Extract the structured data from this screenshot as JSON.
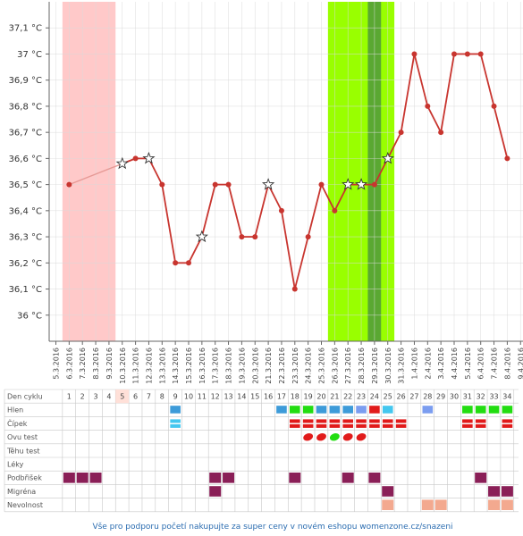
{
  "colors": {
    "line": "#c8352f",
    "period_band": "#ffc9c9",
    "fertile_band": "#99ff00",
    "ovulation_band": "#5aa832",
    "grid": "#d9d9d9",
    "highlight_day": "#ffe0d8",
    "footer_text": "#2a6cb0",
    "marker_blue": "#3d9bd9",
    "marker_lightblue": "#43c7ef",
    "marker_periwinkle": "#7b9df0",
    "marker_green": "#22dd11",
    "marker_red": "#e11b1b",
    "marker_purple": "#8a1f57",
    "marker_salmon": "#f3a98f"
  },
  "chart_data": {
    "type": "line",
    "ylim": [
      35.9,
      37.2
    ],
    "yticks": [
      "36 °C",
      "36,1 °C",
      "36,2 °C",
      "36,3 °C",
      "36,4 °C",
      "36,5 °C",
      "36,6 °C",
      "36,7 °C",
      "36,8 °C",
      "36,9 °C",
      "37 °C",
      "37,1 °C"
    ],
    "ytick_values": [
      36.0,
      36.1,
      36.2,
      36.3,
      36.4,
      36.5,
      36.6,
      36.7,
      36.8,
      36.9,
      37.0,
      37.1
    ],
    "dates": [
      "5.3.2016",
      "6.3.2016",
      "7.3.2016",
      "8.3.2016",
      "9.3.2016",
      "10.3.2016",
      "11.3.2016",
      "12.3.2016",
      "13.3.2016",
      "14.3.2016",
      "15.3.2016",
      "16.3.2016",
      "17.3.2016",
      "18.3.2016",
      "19.3.2016",
      "20.3.2016",
      "21.3.2016",
      "22.3.2016",
      "23.3.2016",
      "24.3.2016",
      "25.3.2016",
      "26.3.2016",
      "27.3.2016",
      "28.3.2016",
      "29.3.2016",
      "30.3.2016",
      "31.3.2016",
      "1.4.2016",
      "2.4.2016",
      "3.4.2016",
      "4.4.2016",
      "5.4.2016",
      "6.4.2016",
      "7.4.2016",
      "8.4.2016",
      "9.4.2016"
    ],
    "temperatures": [
      null,
      36.5,
      null,
      null,
      null,
      36.58,
      36.6,
      36.6,
      36.5,
      36.2,
      36.2,
      36.3,
      36.5,
      36.5,
      36.3,
      36.3,
      36.5,
      36.4,
      36.1,
      36.3,
      36.5,
      36.4,
      36.5,
      36.5,
      36.5,
      36.6,
      36.7,
      37.0,
      36.8,
      36.7,
      37.0,
      37.0,
      37.0,
      36.8,
      36.6,
      null
    ],
    "star_days": [
      5,
      7,
      11,
      16,
      22,
      23,
      25
    ],
    "dotted_segment": [
      1,
      5
    ],
    "period_band_days": [
      1,
      4
    ],
    "fertile_band_days": [
      21,
      25
    ],
    "ovulation_band_day": 24,
    "grid": true
  },
  "cycle_table": {
    "rows": [
      "Den cyklu",
      "Hlen",
      "Čípek",
      "Ovu test",
      "Těhu test",
      "Léky",
      "Podbřišek",
      "Migréna",
      "Nevolnost"
    ],
    "day_numbers": [
      "1",
      "2",
      "3",
      "4",
      "5",
      "6",
      "7",
      "8",
      "9",
      "10",
      "11",
      "12",
      "13",
      "14",
      "15",
      "16",
      "17",
      "18",
      "19",
      "20",
      "21",
      "22",
      "23",
      "24",
      "25",
      "26",
      "27",
      "28",
      "29",
      "30",
      "31",
      "32",
      "33",
      "34"
    ],
    "highlight_day": 5,
    "hlen": [
      {
        "day": 9,
        "color": "marker_blue"
      },
      {
        "day": 17,
        "color": "marker_blue"
      },
      {
        "day": 18,
        "color": "marker_green"
      },
      {
        "day": 19,
        "color": "marker_green"
      },
      {
        "day": 20,
        "color": "marker_blue"
      },
      {
        "day": 21,
        "color": "marker_blue"
      },
      {
        "day": 22,
        "color": "marker_blue"
      },
      {
        "day": 23,
        "color": "marker_periwinkle"
      },
      {
        "day": 24,
        "color": "marker_red"
      },
      {
        "day": 25,
        "color": "marker_lightblue"
      },
      {
        "day": 28,
        "color": "marker_periwinkle"
      },
      {
        "day": 31,
        "color": "marker_green"
      },
      {
        "day": 32,
        "color": "marker_green"
      },
      {
        "day": 33,
        "color": "marker_green"
      },
      {
        "day": 34,
        "color": "marker_green"
      }
    ],
    "cipek": [
      {
        "day": 9,
        "color": "marker_lightblue"
      },
      {
        "day": 18,
        "color": "marker_red"
      },
      {
        "day": 19,
        "color": "marker_red"
      },
      {
        "day": 20,
        "color": "marker_red"
      },
      {
        "day": 21,
        "color": "marker_red"
      },
      {
        "day": 22,
        "color": "marker_red"
      },
      {
        "day": 23,
        "color": "marker_red"
      },
      {
        "day": 24,
        "color": "marker_red"
      },
      {
        "day": 25,
        "color": "marker_red"
      },
      {
        "day": 26,
        "color": "marker_red"
      },
      {
        "day": 31,
        "color": "marker_red"
      },
      {
        "day": 32,
        "color": "marker_red"
      },
      {
        "day": 34,
        "color": "marker_red"
      }
    ],
    "ovu_test": [
      {
        "day": 19,
        "color": "marker_red"
      },
      {
        "day": 20,
        "color": "marker_red"
      },
      {
        "day": 21,
        "color": "marker_green"
      },
      {
        "day": 22,
        "color": "marker_red"
      },
      {
        "day": 23,
        "color": "marker_red"
      }
    ],
    "podbrisek": [
      1,
      2,
      3,
      12,
      13,
      18,
      22,
      24,
      32
    ],
    "migrena": [
      12,
      25,
      33,
      34
    ],
    "nevolnost": [
      25,
      28,
      29,
      33,
      34
    ]
  },
  "footer": "Vše pro podporu početí nakupujte za super ceny v novém eshopu womenzone.cz/snazeni"
}
